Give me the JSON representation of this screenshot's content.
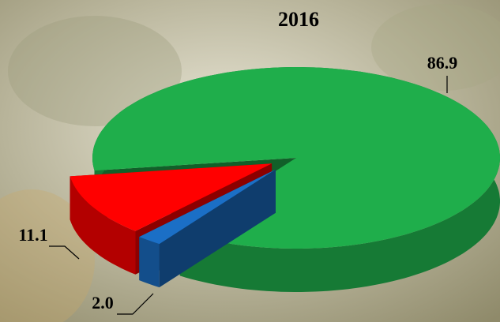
{
  "chart_data": {
    "type": "pie",
    "title": "2016",
    "values": [
      86.9,
      11.1,
      2.0
    ],
    "value_labels": [
      "86.9",
      "11.1",
      "2.0"
    ],
    "colors": [
      "#1fae4b",
      "#ff0000",
      "#1b6fc6"
    ]
  }
}
